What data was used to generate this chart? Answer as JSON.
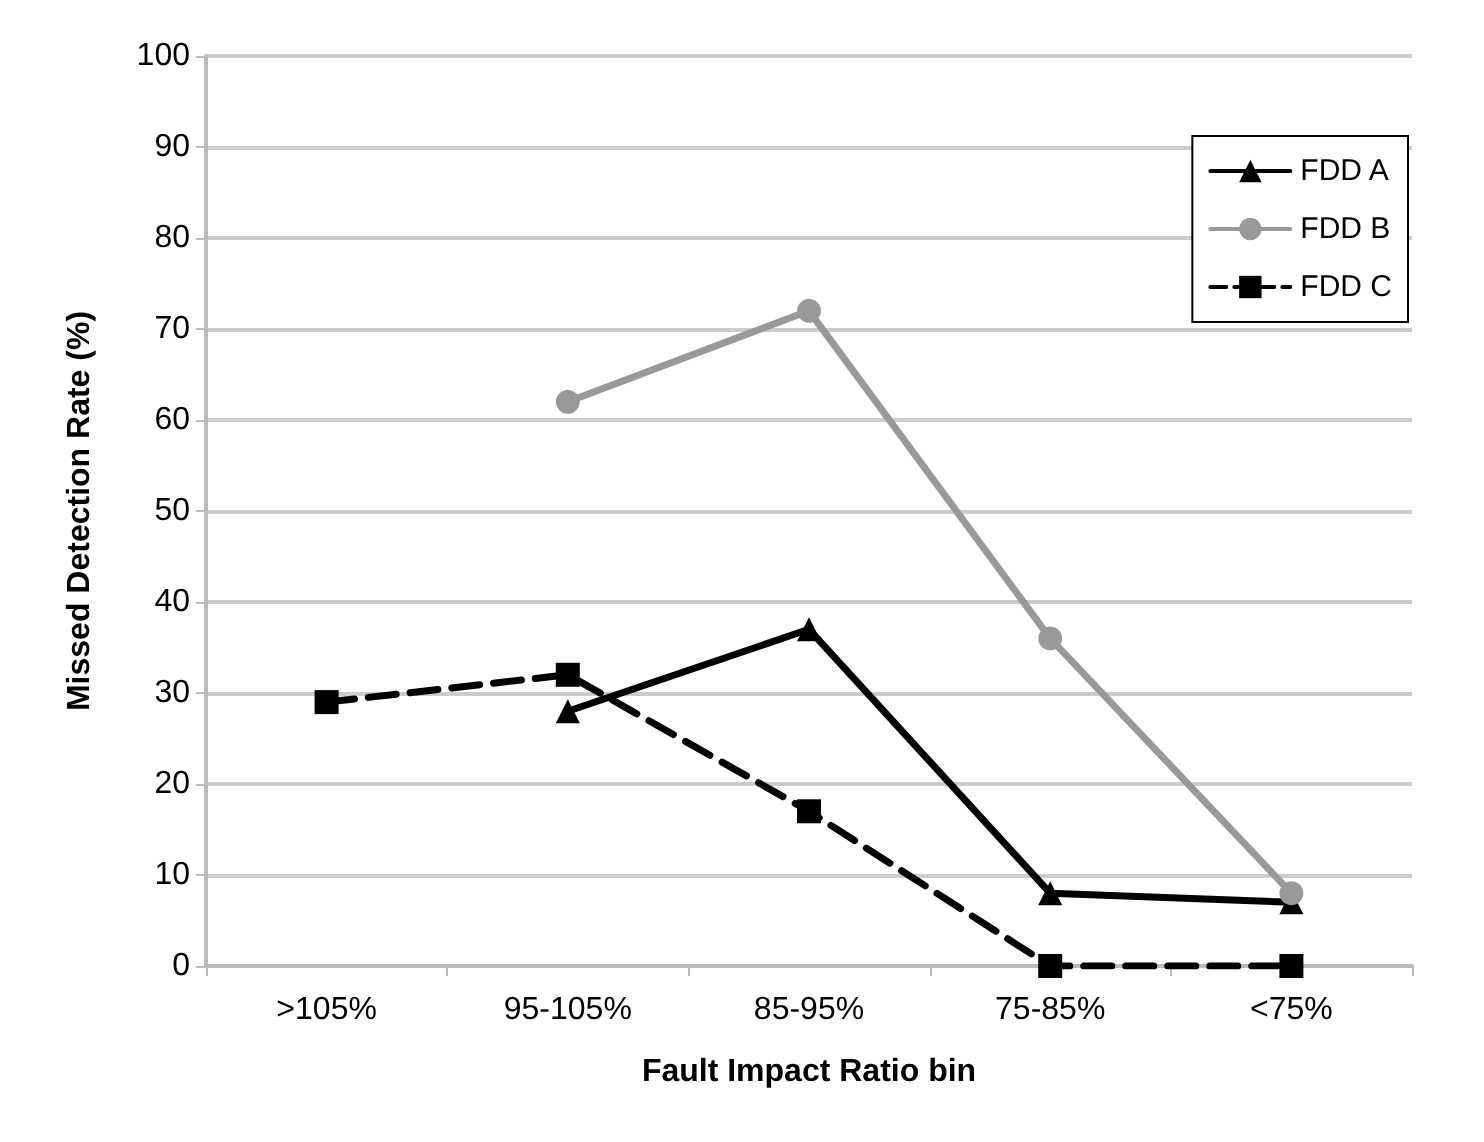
{
  "chart_data": {
    "type": "line",
    "xlabel": "Fault Impact Ratio bin",
    "ylabel": "Missed Detection Rate (%)",
    "categories": [
      ">105%",
      "95-105%",
      "85-95%",
      "75-85%",
      "<75%"
    ],
    "series": [
      {
        "name": "FDD A",
        "color": "#000000",
        "marker": "triangle",
        "line_style": "solid",
        "values": [
          null,
          28,
          37,
          8,
          7
        ]
      },
      {
        "name": "FDD B",
        "color": "#999999",
        "marker": "circle",
        "line_style": "solid",
        "values": [
          null,
          62,
          72,
          36,
          8
        ]
      },
      {
        "name": "FDD C",
        "color": "#000000",
        "marker": "square",
        "line_style": "dashed",
        "values": [
          29,
          32,
          17,
          0,
          0
        ]
      }
    ],
    "ylim": [
      0,
      100
    ],
    "yticks": [
      0,
      10,
      20,
      30,
      40,
      50,
      60,
      70,
      80,
      90,
      100
    ],
    "grid": "y",
    "legend": "top right"
  }
}
